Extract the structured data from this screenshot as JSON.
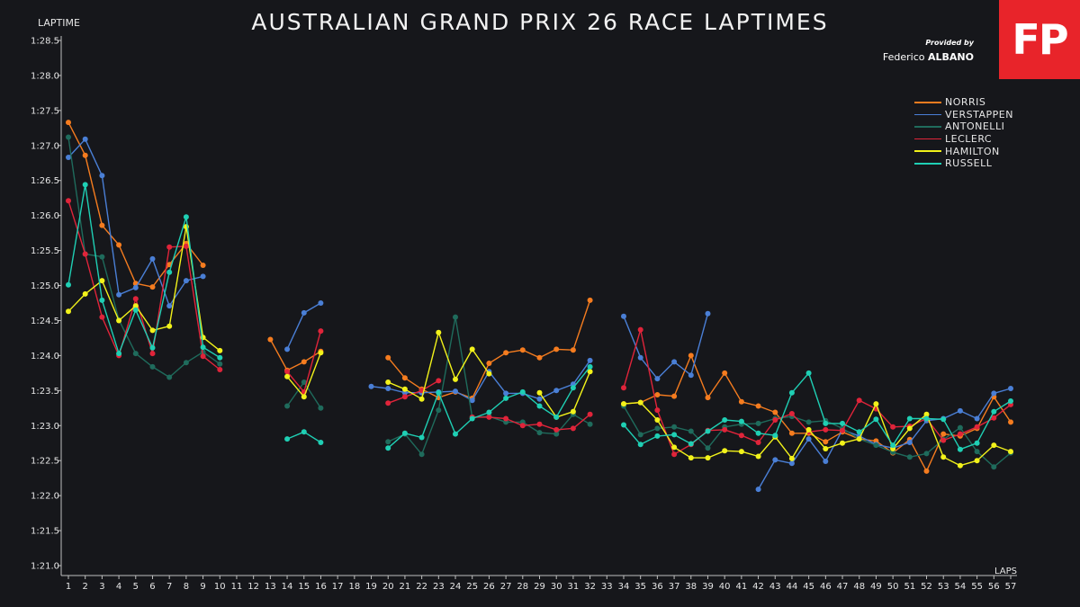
{
  "header": {
    "title": "AUSTRALIAN GRAND PRIX 26 RACE LAPTIMES",
    "logo_text": "FP",
    "provided_by": "Provided by",
    "author_first": "Federico",
    "author_last": "ALBANO"
  },
  "colors": {
    "background": "#16171b",
    "axis": "#bfbfbf",
    "logo": "#e8242a"
  },
  "chart_data": {
    "type": "line",
    "xlabel": "LAPS",
    "ylabel": "LAPTIME",
    "x": [
      1,
      2,
      3,
      4,
      5,
      6,
      7,
      8,
      9,
      10,
      11,
      12,
      13,
      14,
      15,
      16,
      17,
      18,
      19,
      20,
      21,
      22,
      23,
      24,
      25,
      26,
      27,
      28,
      29,
      30,
      31,
      32,
      33,
      34,
      35,
      36,
      37,
      38,
      39,
      40,
      41,
      42,
      43,
      44,
      45,
      46,
      47,
      48,
      49,
      50,
      51,
      52,
      53,
      54,
      55,
      56,
      57
    ],
    "xlim": [
      1,
      57
    ],
    "ylim_seconds": [
      81.0,
      88.5
    ],
    "y_ticks": [
      "1:21.0",
      "1:21.5",
      "1:22.0",
      "1:22.5",
      "1:23.0",
      "1:23.5",
      "1:24.0",
      "1:24.5",
      "1:25.0",
      "1:25.5",
      "1:26.0",
      "1:26.5",
      "1:27.0",
      "1:27.5",
      "1:28.0",
      "1:28.5"
    ],
    "y_tick_values": [
      81.0,
      81.5,
      82.0,
      82.5,
      83.0,
      83.5,
      84.0,
      84.5,
      85.0,
      85.5,
      86.0,
      86.5,
      87.0,
      87.5,
      88.0,
      88.5
    ],
    "legend_position": "top-right",
    "series": [
      {
        "name": "NORRIS",
        "color": "#f57c1f",
        "values": [
          87.33,
          86.86,
          85.86,
          85.58,
          85.03,
          84.98,
          85.3,
          85.6,
          85.29,
          null,
          null,
          null,
          84.23,
          83.79,
          83.91,
          84.06,
          null,
          null,
          null,
          83.97,
          83.68,
          83.52,
          83.4,
          83.48,
          83.39,
          83.89,
          84.04,
          84.08,
          83.97,
          84.09,
          84.08,
          84.79,
          null,
          83.31,
          83.33,
          83.44,
          83.42,
          84.0,
          83.4,
          83.75,
          83.34,
          83.28,
          83.19,
          82.89,
          82.89,
          82.77,
          82.91,
          82.81,
          82.78,
          82.61,
          82.8,
          82.35,
          82.88,
          82.85,
          82.96,
          83.41,
          83.05
        ]
      },
      {
        "name": "VERSTAPPEN",
        "color": "#4a7fd6",
        "values": [
          86.83,
          87.09,
          86.57,
          84.87,
          84.97,
          85.38,
          84.71,
          85.07,
          85.13,
          null,
          null,
          null,
          null,
          84.09,
          84.61,
          84.75,
          null,
          null,
          83.56,
          83.53,
          83.47,
          83.47,
          83.48,
          83.49,
          83.36,
          83.77,
          83.46,
          83.46,
          83.38,
          83.5,
          83.59,
          83.93,
          null,
          84.56,
          83.97,
          83.67,
          83.91,
          83.72,
          84.6,
          null,
          null,
          82.09,
          82.51,
          82.46,
          82.81,
          82.49,
          82.94,
          82.85,
          82.73,
          82.68,
          82.76,
          83.07,
          83.1,
          83.21,
          83.1,
          83.46,
          83.53
        ]
      },
      {
        "name": "ANTONELLI",
        "color": "#1f6b5c",
        "values": [
          87.12,
          85.45,
          85.41,
          84.51,
          84.03,
          83.84,
          83.69,
          83.9,
          84.05,
          83.88,
          null,
          null,
          null,
          83.28,
          83.62,
          83.25,
          null,
          null,
          null,
          82.77,
          82.88,
          82.59,
          83.22,
          84.55,
          83.12,
          83.13,
          83.05,
          83.05,
          82.9,
          82.88,
          83.16,
          83.02,
          null,
          83.28,
          82.87,
          82.96,
          82.98,
          82.92,
          82.68,
          82.98,
          83.02,
          83.03,
          83.1,
          83.13,
          83.05,
          83.07,
          82.96,
          82.81,
          82.72,
          82.62,
          82.55,
          82.6,
          82.8,
          82.97,
          82.63,
          82.41,
          82.61
        ]
      },
      {
        "name": "LECLERC",
        "color": "#e0243a",
        "values": [
          86.21,
          85.45,
          84.55,
          84.0,
          84.81,
          84.03,
          85.55,
          85.56,
          83.99,
          83.8,
          null,
          null,
          null,
          83.77,
          83.48,
          84.35,
          null,
          null,
          null,
          83.32,
          83.41,
          83.5,
          83.64,
          null,
          83.12,
          83.12,
          83.1,
          83.0,
          83.02,
          82.94,
          82.96,
          83.16,
          null,
          83.54,
          84.37,
          83.22,
          82.59,
          82.73,
          82.93,
          82.94,
          82.86,
          82.76,
          83.08,
          83.17,
          82.91,
          82.94,
          82.93,
          83.36,
          83.24,
          82.98,
          82.99,
          83.1,
          82.79,
          82.88,
          82.98,
          83.11,
          83.3
        ]
      },
      {
        "name": "HAMILTON",
        "color": "#f2f21a",
        "values": [
          84.63,
          84.88,
          85.07,
          84.5,
          84.71,
          84.36,
          84.42,
          85.84,
          84.26,
          84.07,
          null,
          null,
          null,
          83.7,
          83.41,
          84.04,
          null,
          null,
          null,
          83.62,
          83.52,
          83.38,
          84.33,
          83.66,
          84.09,
          83.74,
          null,
          null,
          83.47,
          83.12,
          83.2,
          83.77,
          null,
          83.31,
          83.33,
          83.08,
          82.69,
          82.54,
          82.54,
          82.64,
          82.63,
          82.56,
          82.84,
          82.53,
          82.94,
          82.67,
          82.75,
          82.81,
          83.31,
          82.67,
          82.96,
          83.16,
          82.55,
          82.43,
          82.5,
          82.72,
          82.63
        ]
      },
      {
        "name": "RUSSELL",
        "color": "#1fcfb4",
        "values": [
          85.01,
          86.44,
          84.79,
          84.03,
          84.65,
          84.11,
          85.19,
          85.98,
          84.12,
          83.97,
          null,
          null,
          null,
          82.81,
          82.91,
          82.76,
          null,
          null,
          null,
          82.68,
          82.89,
          82.83,
          83.47,
          82.88,
          83.1,
          83.19,
          83.39,
          83.48,
          83.28,
          83.12,
          83.54,
          83.84,
          null,
          83.01,
          82.73,
          82.85,
          82.87,
          82.74,
          82.92,
          83.08,
          83.06,
          82.89,
          82.86,
          83.47,
          83.75,
          83.03,
          83.03,
          82.91,
          83.09,
          82.72,
          83.1,
          83.1,
          83.09,
          82.66,
          82.75,
          83.2,
          83.35
        ]
      }
    ]
  }
}
